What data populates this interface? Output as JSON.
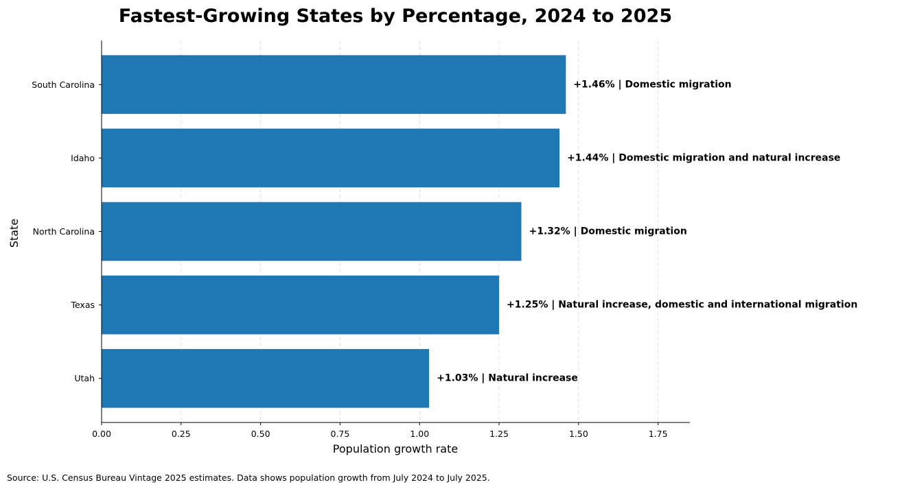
{
  "chart_data": {
    "type": "bar",
    "orientation": "horizontal",
    "title": "Fastest-Growing States by Percentage, 2024 to 2025",
    "xlabel": "Population growth rate",
    "ylabel": "State",
    "xlim": [
      0,
      1.85
    ],
    "xticks": [
      0.0,
      0.25,
      0.5,
      0.75,
      1.0,
      1.25,
      1.5,
      1.75
    ],
    "xtick_labels": [
      "0.00",
      "0.25",
      "0.50",
      "0.75",
      "1.00",
      "1.25",
      "1.50",
      "1.75"
    ],
    "grid": "x-dashed",
    "bar_color": "#1f77b4",
    "categories": [
      "South Carolina",
      "Idaho",
      "North Carolina",
      "Texas",
      "Utah"
    ],
    "values": [
      1.46,
      1.44,
      1.32,
      1.25,
      1.03
    ],
    "bar_labels": [
      "+1.46%  |  Domestic migration",
      "+1.44%  |  Domestic migration and natural increase",
      "+1.32%  |  Domestic migration",
      "+1.25%  |  Natural increase, domestic and international migration",
      "+1.03%  |  Natural increase"
    ],
    "source": "Source: U.S. Census Bureau Vintage 2025 estimates. Data shows population growth from July 2024 to July 2025."
  }
}
